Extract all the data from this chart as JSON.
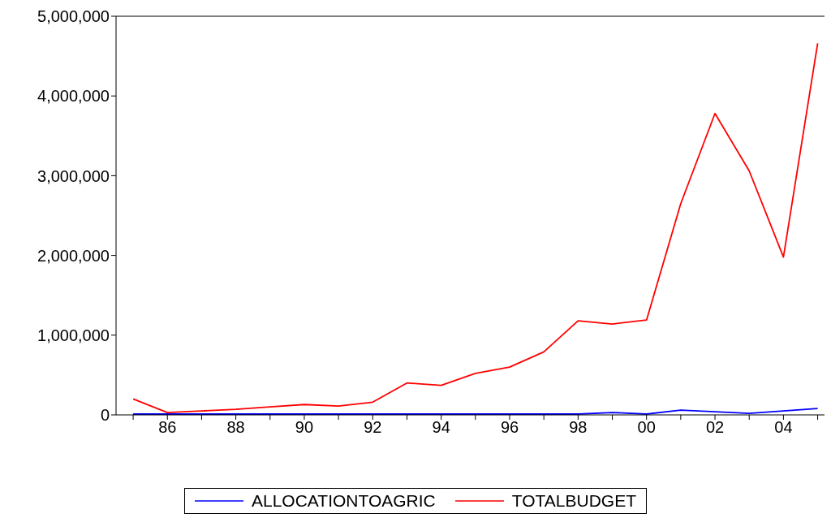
{
  "chart_data": {
    "type": "line",
    "x": [
      1985,
      1986,
      1987,
      1988,
      1989,
      1990,
      1991,
      1992,
      1993,
      1994,
      1995,
      1996,
      1997,
      1998,
      1999,
      2000,
      2001,
      2002,
      2003,
      2004,
      2005
    ],
    "series": [
      {
        "name": "ALLOCATIONTOAGRIC",
        "color": "#0000ff",
        "values": [
          10000,
          10000,
          10000,
          10000,
          10000,
          10000,
          10000,
          10000,
          10000,
          10000,
          10000,
          10000,
          10000,
          10000,
          30000,
          10000,
          60000,
          40000,
          20000,
          50000,
          80000
        ]
      },
      {
        "name": "TOTALBUDGET",
        "color": "#ff0000",
        "values": [
          200000,
          30000,
          50000,
          70000,
          100000,
          130000,
          110000,
          160000,
          400000,
          370000,
          520000,
          600000,
          790000,
          1180000,
          1140000,
          1190000,
          2650000,
          3780000,
          3060000,
          1980000,
          4660000
        ]
      }
    ],
    "xlim": [
      1984.5,
      2005.2
    ],
    "xticks": [
      {
        "value": 1985,
        "label": null
      },
      {
        "value": 1986,
        "label": "86"
      },
      {
        "value": 1987,
        "label": null
      },
      {
        "value": 1988,
        "label": "88"
      },
      {
        "value": 1989,
        "label": null
      },
      {
        "value": 1990,
        "label": "90"
      },
      {
        "value": 1991,
        "label": null
      },
      {
        "value": 1992,
        "label": "92"
      },
      {
        "value": 1993,
        "label": null
      },
      {
        "value": 1994,
        "label": "94"
      },
      {
        "value": 1995,
        "label": null
      },
      {
        "value": 1996,
        "label": "96"
      },
      {
        "value": 1997,
        "label": null
      },
      {
        "value": 1998,
        "label": "98"
      },
      {
        "value": 1999,
        "label": null
      },
      {
        "value": 2000,
        "label": "00"
      },
      {
        "value": 2001,
        "label": null
      },
      {
        "value": 2002,
        "label": "02"
      },
      {
        "value": 2003,
        "label": null
      },
      {
        "value": 2004,
        "label": "04"
      },
      {
        "value": 2005,
        "label": null
      }
    ],
    "ylim": [
      0,
      5000000
    ],
    "yticks": [
      {
        "value": 0,
        "label": "0"
      },
      {
        "value": 1000000,
        "label": "1,000,000"
      },
      {
        "value": 2000000,
        "label": "2,000,000"
      },
      {
        "value": 3000000,
        "label": "3,000,000"
      },
      {
        "value": 4000000,
        "label": "4,000,000"
      },
      {
        "value": 5000000,
        "label": "5,000,000"
      }
    ],
    "legend": "bottom",
    "marker": "none",
    "line_style": "solid"
  }
}
